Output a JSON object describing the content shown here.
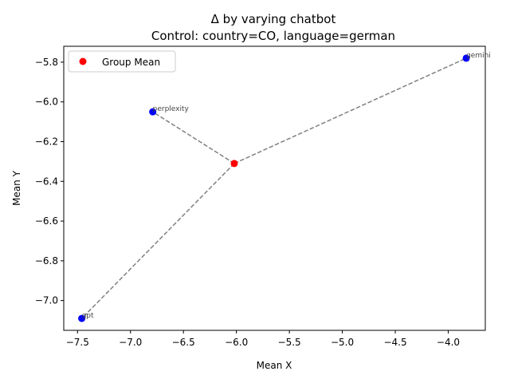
{
  "chart_data": {
    "type": "scatter",
    "title": "Δ by varying chatbot",
    "subtitle": "Control: country=CO, language=german",
    "xlabel": "Mean X",
    "ylabel": "Mean Y",
    "xlim": [
      -7.63,
      -3.65
    ],
    "ylim": [
      -7.15,
      -5.72
    ],
    "xticks": [
      -7.5,
      -7.0,
      -6.5,
      -6.0,
      -5.5,
      -5.0,
      -4.5,
      -4.0
    ],
    "xtick_labels": [
      "−7.5",
      "−7.0",
      "−6.5",
      "−6.0",
      "−5.5",
      "−5.0",
      "−4.5",
      "−4.0"
    ],
    "yticks": [
      -7.0,
      -6.8,
      -6.6,
      -6.4,
      -6.2,
      -6.0,
      -5.8
    ],
    "ytick_labels": [
      "−7.0",
      "−6.8",
      "−6.6",
      "−6.4",
      "−6.2",
      "−6.0",
      "−5.8"
    ],
    "grid": false,
    "legend": {
      "position": "top-left",
      "entries": [
        {
          "name": "Group Mean",
          "color": "#ff0000"
        }
      ]
    },
    "group_mean": {
      "x": -6.02,
      "y": -6.31,
      "color": "#ff0000"
    },
    "points": [
      {
        "label": "perplexity",
        "x": -6.79,
        "y": -6.05
      },
      {
        "label": "gemini",
        "x": -3.83,
        "y": -5.78
      },
      {
        "label": "gpt",
        "x": -7.46,
        "y": -7.09
      }
    ],
    "point_color": "#0000ff",
    "line_color": "#808080"
  }
}
